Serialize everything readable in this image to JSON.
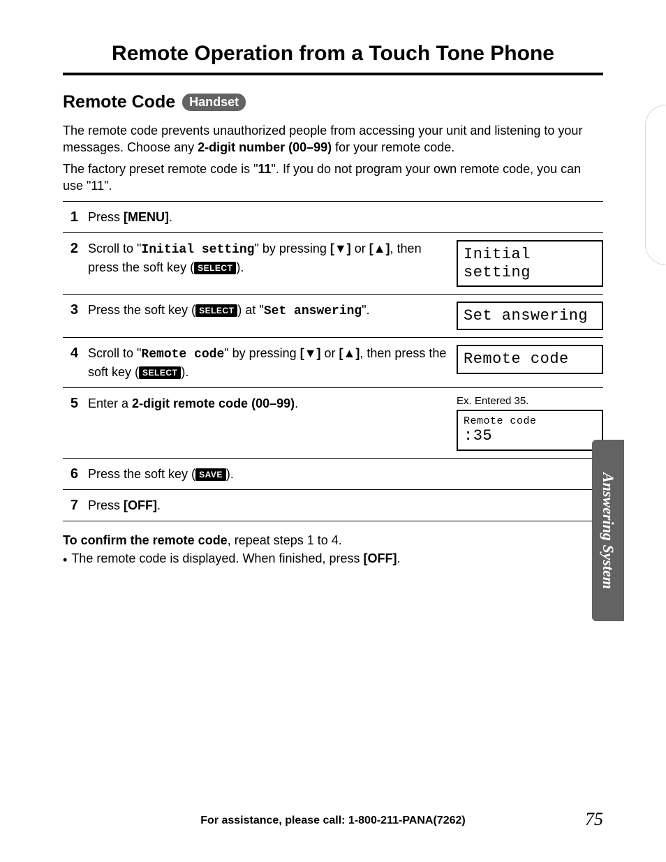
{
  "title": "Remote Operation from a Touch Tone Phone",
  "section_title": "Remote Code",
  "badge": "Handset",
  "intro_part1": "The remote code prevents unauthorized people from accessing your unit and listening to your messages. Choose any ",
  "intro_bold1": "2-digit number (00–99)",
  "intro_part2": " for your remote code.",
  "intro_line2a": "The factory preset remote code is \"",
  "intro_line2_bold": "11",
  "intro_line2b": "\". If you do not program your own remote code, you can use \"11\".",
  "steps": {
    "s1": {
      "num": "1",
      "a": "Press ",
      "b": "[MENU]",
      "c": "."
    },
    "s2": {
      "num": "2",
      "a": "Scroll to \"",
      "mono": "Initial setting",
      "b": "\" by pressing ",
      "key_down": "[▼]",
      "or": " or ",
      "key_up": "[▲]",
      "c": ", then press the soft key (",
      "select": "SELECT",
      "d": ").",
      "display": "Initial setting"
    },
    "s3": {
      "num": "3",
      "a": "Press the soft key (",
      "select": "SELECT",
      "b": ") at \"",
      "mono": "Set answering",
      "c": "\".",
      "display": "Set answering"
    },
    "s4": {
      "num": "4",
      "a": "Scroll to \"",
      "mono": "Remote code",
      "b": "\" by pressing ",
      "key_down": "[▼]",
      "or": " or ",
      "key_up": "[▲]",
      "c": ", then press the soft key (",
      "select": "SELECT",
      "d": ").",
      "display": "Remote code"
    },
    "s5": {
      "num": "5",
      "a": "Enter a ",
      "b": "2-digit remote code (00–99)",
      "c": ".",
      "ex_label": "Ex. Entered 35.",
      "display_line1": "Remote code",
      "display_line2": ":35"
    },
    "s6": {
      "num": "6",
      "a": "Press the soft key (",
      "save": "SAVE",
      "b": ")."
    },
    "s7": {
      "num": "7",
      "a": "Press ",
      "b": "[OFF]",
      "c": "."
    }
  },
  "post": {
    "line1_bold": "To confirm the remote code",
    "line1_rest": ", repeat steps 1 to 4.",
    "bullet": "The remote code is displayed. When finished, press ",
    "bullet_bold": "[OFF]",
    "bullet_end": "."
  },
  "side_tab": "Answering System",
  "footer_text": "For assistance, please call: 1-800-211-PANA(7262)",
  "page_number": "75",
  "colors": {
    "badge_bg": "#636363",
    "text": "#000000",
    "page_bg": "#ffffff",
    "border": "#000000"
  }
}
